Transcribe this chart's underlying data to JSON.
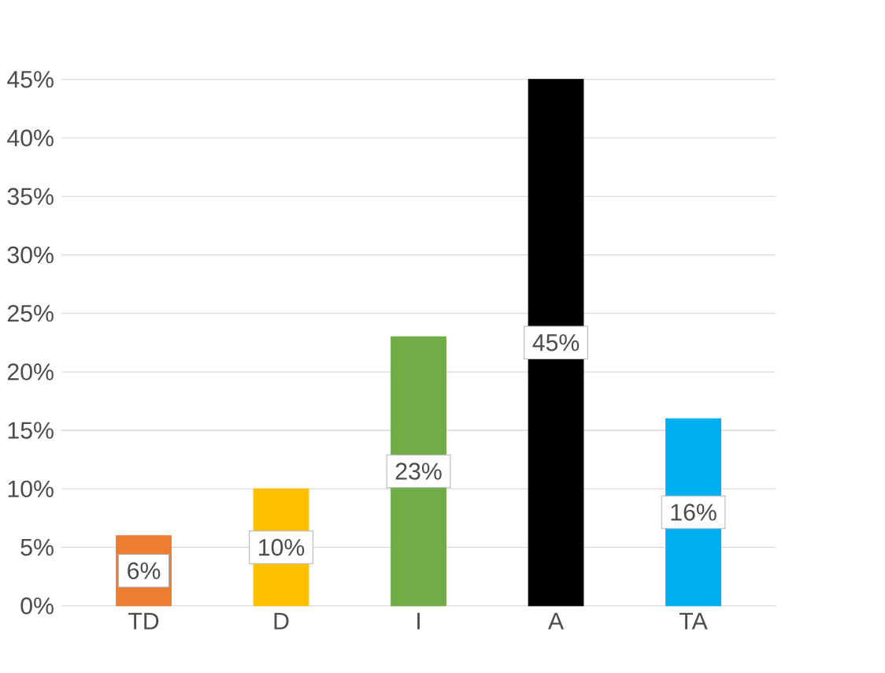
{
  "chart_data": {
    "type": "bar",
    "categories": [
      "TD",
      "D",
      "I",
      "A",
      "TA"
    ],
    "values": [
      6,
      10,
      23,
      45,
      16
    ],
    "colors": [
      "#ed7d31",
      "#ffc000",
      "#70ad47",
      "#000000",
      "#00b0f0"
    ],
    "value_labels": [
      "6%",
      "10%",
      "23%",
      "45%",
      "16%"
    ],
    "ylim": [
      0,
      45
    ],
    "yticks": [
      {
        "value": 0,
        "label": "0%"
      },
      {
        "value": 5,
        "label": "5%"
      },
      {
        "value": 10,
        "label": "10%"
      },
      {
        "value": 15,
        "label": "15%"
      },
      {
        "value": 20,
        "label": "20%"
      },
      {
        "value": 25,
        "label": "25%"
      },
      {
        "value": 30,
        "label": "30%"
      },
      {
        "value": 35,
        "label": "35%"
      },
      {
        "value": 40,
        "label": "40%"
      },
      {
        "value": 45,
        "label": "45%"
      }
    ],
    "grid": "y"
  }
}
